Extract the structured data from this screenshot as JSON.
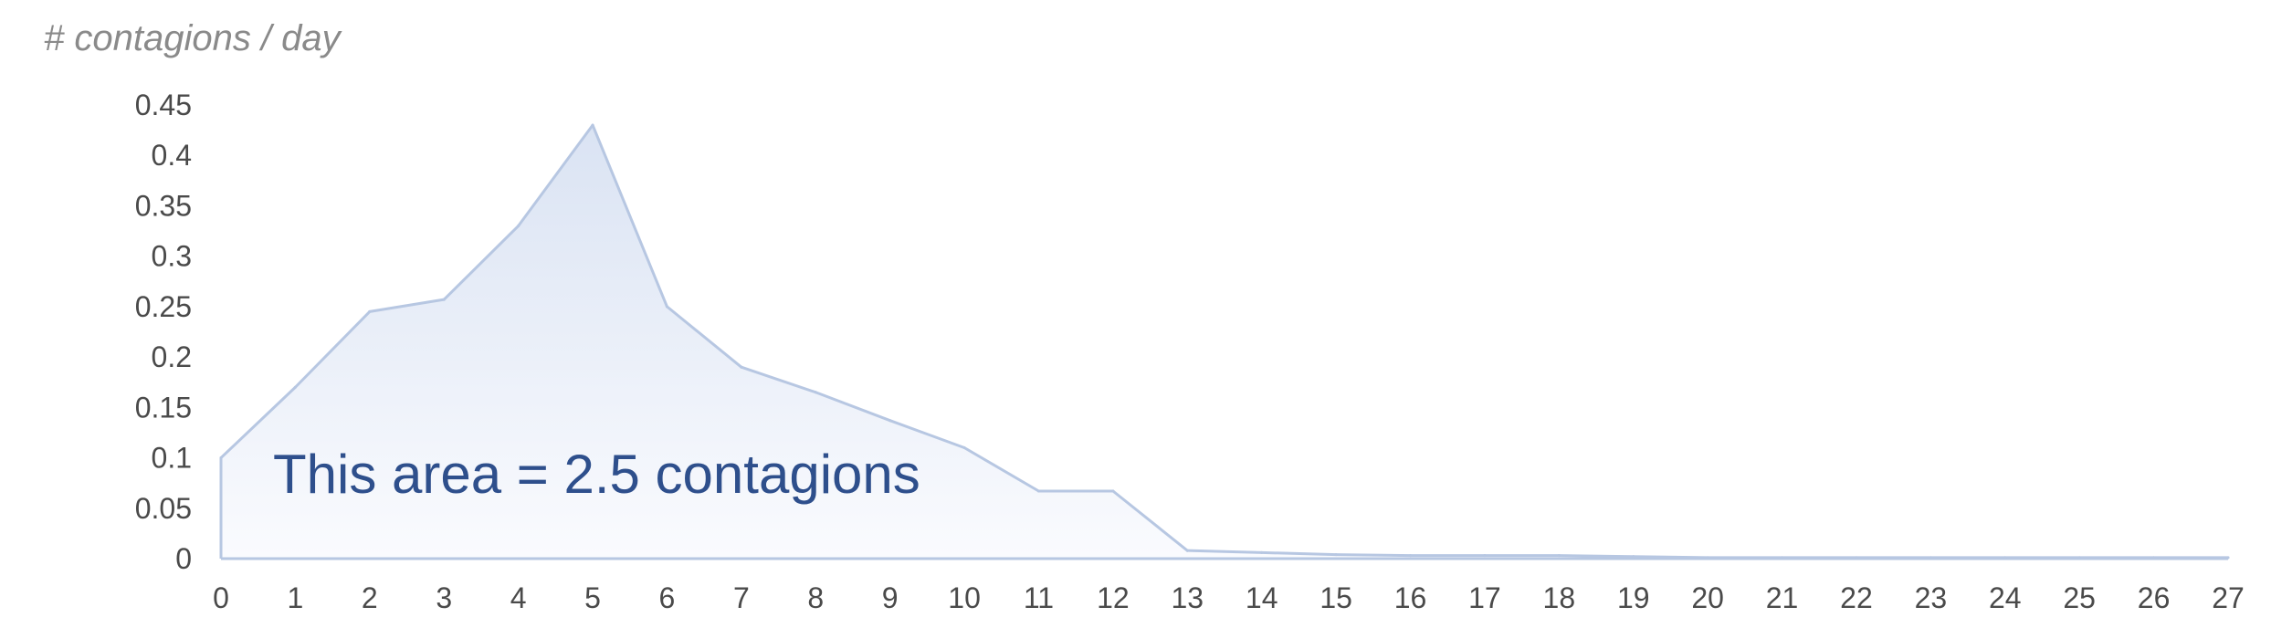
{
  "chart_data": {
    "type": "area",
    "ylabel": "# contagions / day",
    "xlabel": "",
    "x": [
      0,
      1,
      2,
      3,
      4,
      5,
      6,
      7,
      8,
      9,
      10,
      11,
      12,
      13,
      14,
      15,
      16,
      17,
      18,
      19,
      20,
      21,
      22,
      23,
      24,
      25,
      26,
      27
    ],
    "x_tick_labels": [
      "0",
      "1",
      "2",
      "3",
      "4",
      "5",
      "6",
      "7",
      "8",
      "9",
      "10",
      "11",
      "12",
      "13",
      "14",
      "15",
      "16",
      "17",
      "18",
      "19",
      "20",
      "21",
      "22",
      "23",
      "24",
      "25",
      "26",
      "27"
    ],
    "y_tick_values": [
      0,
      0.05,
      0.1,
      0.15,
      0.2,
      0.25,
      0.3,
      0.35,
      0.4,
      0.45
    ],
    "y_tick_labels": [
      "0",
      "0.05",
      "0.1",
      "0.15",
      "0.2",
      "0.25",
      "0.3",
      "0.35",
      "0.4",
      "0.45"
    ],
    "xlim": [
      0,
      27
    ],
    "ylim": [
      0,
      0.45
    ],
    "series": [
      {
        "values": [
          0.1,
          0.17,
          0.245,
          0.257,
          0.33,
          0.43,
          0.25,
          0.19,
          0.165,
          0.137,
          0.11,
          0.067,
          0.067,
          0.008,
          0.006,
          0.004,
          0.003,
          0.003,
          0.003,
          0.002,
          0.001,
          0.001,
          0.001,
          0.001,
          0.001,
          0.001,
          0.001,
          0.001
        ],
        "line_color": "#b7c7e2",
        "fill_top_color": "#dae3f3",
        "fill_bottom_color": "#fafbfe"
      }
    ],
    "annotation": {
      "text": "This area = 2.5 contagions",
      "x": 0.7,
      "y": 0.065,
      "color": "#2e4f8c"
    },
    "grid": false,
    "legend": "none"
  }
}
